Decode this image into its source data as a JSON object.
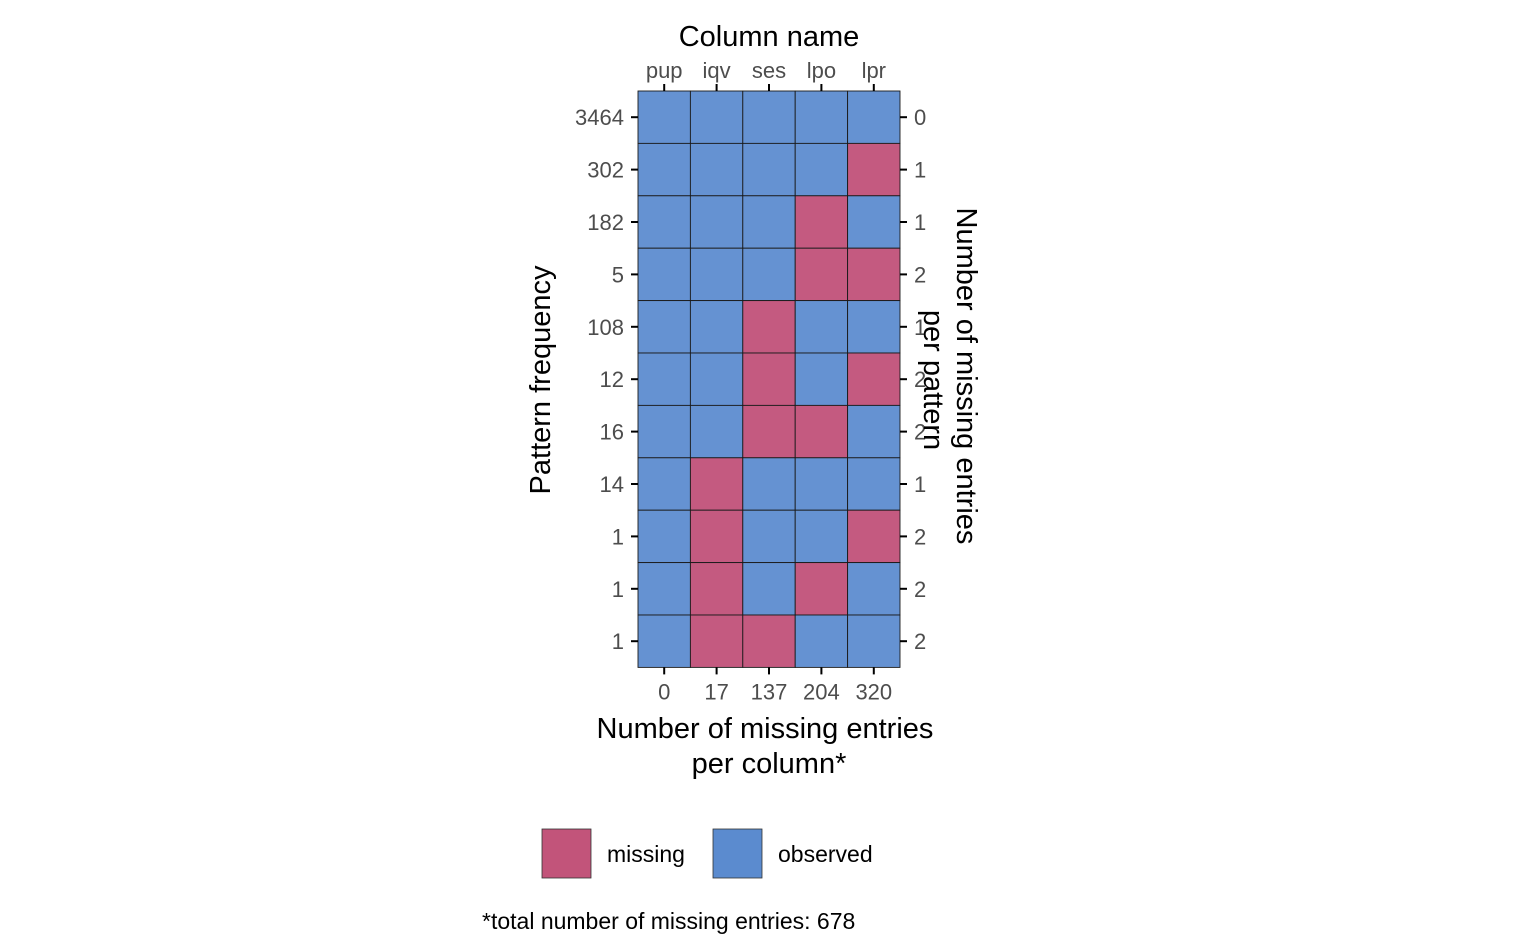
{
  "chart_data": {
    "type": "heatmap",
    "top_axis_title": "Column name",
    "columns": [
      "pup",
      "iqv",
      "ses",
      "lpo",
      "lpr"
    ],
    "missing_per_column": [
      "0",
      "17",
      "137",
      "204",
      "320"
    ],
    "bottom_axis_title_lines": [
      "Number of missing entries",
      "per column*"
    ],
    "left_axis_title": "Pattern frequency",
    "right_axis_title_lines": [
      "Number of missing entries",
      "per pattern"
    ],
    "rows": [
      {
        "frequency": "3464",
        "missing_count": "0",
        "pattern": [
          0,
          0,
          0,
          0,
          0
        ]
      },
      {
        "frequency": "302",
        "missing_count": "1",
        "pattern": [
          0,
          0,
          0,
          0,
          1
        ]
      },
      {
        "frequency": "182",
        "missing_count": "1",
        "pattern": [
          0,
          0,
          0,
          1,
          0
        ]
      },
      {
        "frequency": "5",
        "missing_count": "2",
        "pattern": [
          0,
          0,
          0,
          1,
          1
        ]
      },
      {
        "frequency": "108",
        "missing_count": "1",
        "pattern": [
          0,
          0,
          1,
          0,
          0
        ]
      },
      {
        "frequency": "12",
        "missing_count": "2",
        "pattern": [
          0,
          0,
          1,
          0,
          1
        ]
      },
      {
        "frequency": "16",
        "missing_count": "2",
        "pattern": [
          0,
          0,
          1,
          1,
          0
        ]
      },
      {
        "frequency": "14",
        "missing_count": "1",
        "pattern": [
          0,
          1,
          0,
          0,
          0
        ]
      },
      {
        "frequency": "1",
        "missing_count": "2",
        "pattern": [
          0,
          1,
          0,
          0,
          1
        ]
      },
      {
        "frequency": "1",
        "missing_count": "2",
        "pattern": [
          0,
          1,
          0,
          1,
          0
        ]
      },
      {
        "frequency": "1",
        "missing_count": "2",
        "pattern": [
          0,
          1,
          1,
          0,
          0
        ]
      }
    ],
    "pattern_encoding": {
      "0": "observed",
      "1": "missing"
    },
    "legend": [
      {
        "label": "missing",
        "color": "#c2547a"
      },
      {
        "label": "observed",
        "color": "#5b8bcf"
      }
    ],
    "legend_placement": "bottom",
    "grid": false,
    "caption": "*total number of missing entries: 678"
  }
}
